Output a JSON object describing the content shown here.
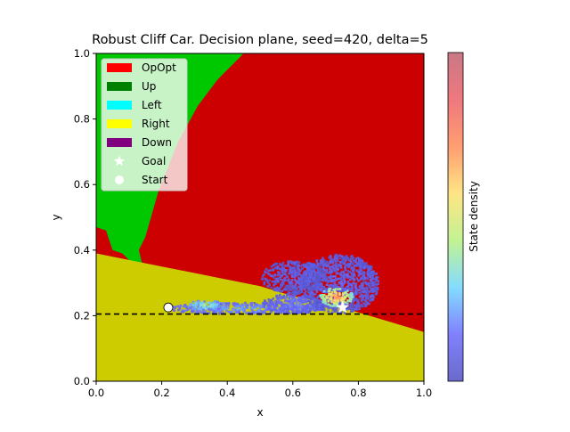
{
  "chart_data": {
    "type": "heatmap",
    "title": "Robust Cliff Car. Decision plane, seed=420, delta=5",
    "xlabel": "x",
    "ylabel": "y",
    "xlim": [
      0.0,
      1.0
    ],
    "ylim": [
      0.0,
      1.0
    ],
    "xticks": [
      "0.0",
      "0.2",
      "0.4",
      "0.6",
      "0.8",
      "1.0"
    ],
    "yticks": [
      "0.0",
      "0.2",
      "0.4",
      "0.6",
      "0.8",
      "1.0"
    ],
    "grid": false,
    "legend_position": "top-left",
    "legend": [
      {
        "label": "OpOpt",
        "color": "#ff0000",
        "kind": "patch"
      },
      {
        "label": "Up",
        "color": "#008000",
        "kind": "patch"
      },
      {
        "label": "Left",
        "color": "#00ffff",
        "kind": "patch"
      },
      {
        "label": "Right",
        "color": "#ffff00",
        "kind": "patch"
      },
      {
        "label": "Down",
        "color": "#800080",
        "kind": "patch"
      },
      {
        "label": "Goal",
        "color": "#ffffff",
        "kind": "star"
      },
      {
        "label": "Start",
        "color": "#ffffff",
        "kind": "circle"
      }
    ],
    "region_colors": {
      "OpOpt": "#cc0000",
      "Up": "#00c800",
      "Right": "#cccc00"
    },
    "up_region_boundary": [
      [
        0.0,
        0.47
      ],
      [
        0.03,
        0.46
      ],
      [
        0.05,
        0.4
      ],
      [
        0.08,
        0.39
      ],
      [
        0.11,
        0.36
      ],
      [
        0.14,
        0.36
      ],
      [
        0.13,
        0.4
      ],
      [
        0.15,
        0.44
      ],
      [
        0.19,
        0.58
      ],
      [
        0.25,
        0.73
      ],
      [
        0.31,
        0.84
      ],
      [
        0.37,
        0.92
      ],
      [
        0.42,
        0.97
      ],
      [
        0.45,
        1.0
      ]
    ],
    "right_region_boundary": [
      [
        0.0,
        0.39
      ],
      [
        0.1,
        0.37
      ],
      [
        0.2,
        0.35
      ],
      [
        0.3,
        0.33
      ],
      [
        0.4,
        0.31
      ],
      [
        0.5,
        0.29
      ],
      [
        0.6,
        0.26
      ],
      [
        0.7,
        0.24
      ],
      [
        0.8,
        0.21
      ],
      [
        0.9,
        0.18
      ],
      [
        1.0,
        0.15
      ]
    ],
    "left_notch": [
      [
        0.0,
        0.42
      ],
      [
        0.03,
        0.42
      ],
      [
        0.03,
        0.46
      ],
      [
        0.0,
        0.46
      ]
    ],
    "cliff_line_y": 0.205,
    "start": {
      "x": 0.22,
      "y": 0.225
    },
    "goal": {
      "x": 0.752,
      "y": 0.225
    },
    "density_clusters": [
      {
        "cx": 0.45,
        "cy": 0.225,
        "rx": 0.24,
        "ry": 0.018,
        "level": 0.18
      },
      {
        "cx": 0.6,
        "cy": 0.24,
        "rx": 0.1,
        "ry": 0.03,
        "level": 0.12
      },
      {
        "cx": 0.74,
        "cy": 0.3,
        "rx": 0.12,
        "ry": 0.09,
        "level": 0.06
      },
      {
        "cx": 0.73,
        "cy": 0.26,
        "rx": 0.05,
        "ry": 0.03,
        "level": 0.7
      },
      {
        "cx": 0.6,
        "cy": 0.32,
        "rx": 0.1,
        "ry": 0.05,
        "level": 0.04
      },
      {
        "cx": 0.33,
        "cy": 0.235,
        "rx": 0.06,
        "ry": 0.015,
        "level": 0.35
      }
    ],
    "colorbar": {
      "label": "State density",
      "colormap": [
        "#5050c0",
        "#6a6aff",
        "#6fd6ff",
        "#b8f080",
        "#ffe070",
        "#ff8c58",
        "#ec6068",
        "#c06070"
      ]
    }
  }
}
